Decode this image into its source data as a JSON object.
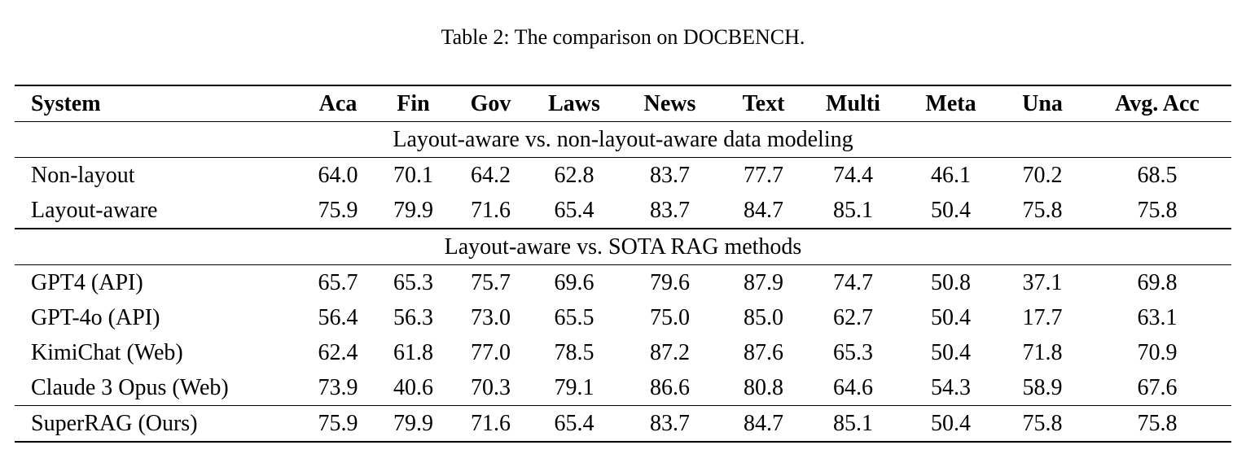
{
  "caption": "Table 2: The comparison on DOCBENCH.",
  "colors": {
    "text": "#000000",
    "background": "#ffffff",
    "rule": "#000000"
  },
  "table": {
    "columns": [
      "System",
      "Aca",
      "Fin",
      "Gov",
      "Laws",
      "News",
      "Text",
      "Multi",
      "Meta",
      "Una",
      "Avg. Acc"
    ],
    "sections": [
      {
        "title": "Layout-aware vs. non-layout-aware data modeling",
        "rows": [
          {
            "system": "Non-layout",
            "values": [
              "64.0",
              "70.1",
              "64.2",
              "62.8",
              "83.7",
              "77.7",
              "74.4",
              "46.1",
              "70.2",
              "68.5"
            ],
            "bold": [
              false,
              false,
              false,
              false,
              false,
              false,
              false,
              false,
              false,
              false
            ]
          },
          {
            "system": "Layout-aware",
            "values": [
              "75.9",
              "79.9",
              "71.6",
              "65.4",
              "83.7",
              "84.7",
              "85.1",
              "50.4",
              "75.8",
              "75.8"
            ],
            "bold": [
              true,
              true,
              true,
              true,
              false,
              true,
              true,
              true,
              true,
              true
            ]
          }
        ]
      },
      {
        "title": "Layout-aware vs. SOTA RAG methods",
        "rows": [
          {
            "system": "GPT4 (API)",
            "values": [
              "65.7",
              "65.3",
              "75.7",
              "69.6",
              "79.6",
              "87.9",
              "74.7",
              "50.8",
              "37.1",
              "69.8"
            ],
            "bold": [
              false,
              false,
              false,
              false,
              false,
              true,
              false,
              false,
              false,
              false
            ]
          },
          {
            "system": "GPT-4o (API)",
            "values": [
              "56.4",
              "56.3",
              "73.0",
              "65.5",
              "75.0",
              "85.0",
              "62.7",
              "50.4",
              "17.7",
              "63.1"
            ],
            "bold": [
              false,
              false,
              false,
              false,
              false,
              false,
              false,
              false,
              false,
              false
            ]
          },
          {
            "system": "KimiChat (Web)",
            "values": [
              "62.4",
              "61.8",
              "77.0",
              "78.5",
              "87.2",
              "87.6",
              "65.3",
              "50.4",
              "71.8",
              "70.9"
            ],
            "bold": [
              false,
              false,
              true,
              false,
              false,
              false,
              false,
              false,
              false,
              false
            ]
          },
          {
            "system": "Claude 3 Opus (Web)",
            "values": [
              "73.9",
              "40.6",
              "70.3",
              "79.1",
              "86.6",
              "80.8",
              "64.6",
              "54.3",
              "58.9",
              "67.6"
            ],
            "bold": [
              false,
              false,
              false,
              true,
              true,
              false,
              false,
              true,
              false,
              false
            ]
          },
          {
            "system": "SuperRAG (Ours)",
            "values": [
              "75.9",
              "79.9",
              "71.6",
              "65.4",
              "83.7",
              "84.7",
              "85.1",
              "50.4",
              "75.8",
              "75.8"
            ],
            "bold": [
              true,
              true,
              false,
              false,
              false,
              false,
              true,
              false,
              true,
              true
            ]
          }
        ]
      }
    ]
  }
}
